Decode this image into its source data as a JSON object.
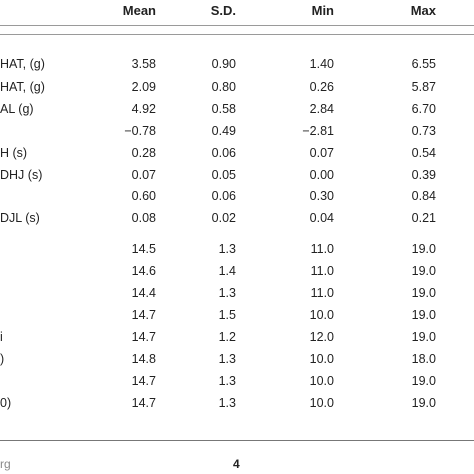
{
  "table": {
    "headers": [
      "Mean",
      "S.D.",
      "Min",
      "Max"
    ],
    "rows": [
      {
        "label": "HAT, (g)",
        "mean": "3.58",
        "sd": "0.90",
        "min": "1.40",
        "max": "6.55"
      },
      {
        "label": "HAT, (g)",
        "mean": "2.09",
        "sd": "0.80",
        "min": "0.26",
        "max": "5.87"
      },
      {
        "label": "AL (g)",
        "mean": "4.92",
        "sd": "0.58",
        "min": "2.84",
        "max": "6.70"
      },
      {
        "label": "",
        "mean": "−0.78",
        "sd": "0.49",
        "min": "−2.81",
        "max": "0.73"
      },
      {
        "label": "H (s)",
        "mean": "0.28",
        "sd": "0.06",
        "min": "0.07",
        "max": "0.54"
      },
      {
        "label": "DHJ (s)",
        "mean": "0.07",
        "sd": "0.05",
        "min": "0.00",
        "max": "0.39"
      },
      {
        "label": "",
        "mean": "0.60",
        "sd": "0.06",
        "min": "0.30",
        "max": "0.84"
      },
      {
        "label": "DJL (s)",
        "mean": "0.08",
        "sd": "0.02",
        "min": "0.04",
        "max": "0.21"
      },
      {
        "label": "",
        "mean": "14.5",
        "sd": "1.3",
        "min": "11.0",
        "max": "19.0"
      },
      {
        "label": "",
        "mean": "14.6",
        "sd": "1.4",
        "min": "11.0",
        "max": "19.0"
      },
      {
        "label": "",
        "mean": "14.4",
        "sd": "1.3",
        "min": "11.0",
        "max": "19.0"
      },
      {
        "label": "",
        "mean": "14.7",
        "sd": "1.5",
        "min": "10.0",
        "max": "19.0"
      },
      {
        "label": "i",
        "mean": "14.7",
        "sd": "1.2",
        "min": "12.0",
        "max": "19.0"
      },
      {
        "label": ")",
        "mean": "14.8",
        "sd": "1.3",
        "min": "10.0",
        "max": "18.0"
      },
      {
        "label": "",
        "mean": "14.7",
        "sd": "1.3",
        "min": "10.0",
        "max": "19.0"
      },
      {
        "label": "0)",
        "mean": "14.7",
        "sd": "1.3",
        "min": "10.0",
        "max": "19.0"
      }
    ]
  },
  "footer": {
    "left_text": "rg",
    "page_number": "4"
  }
}
